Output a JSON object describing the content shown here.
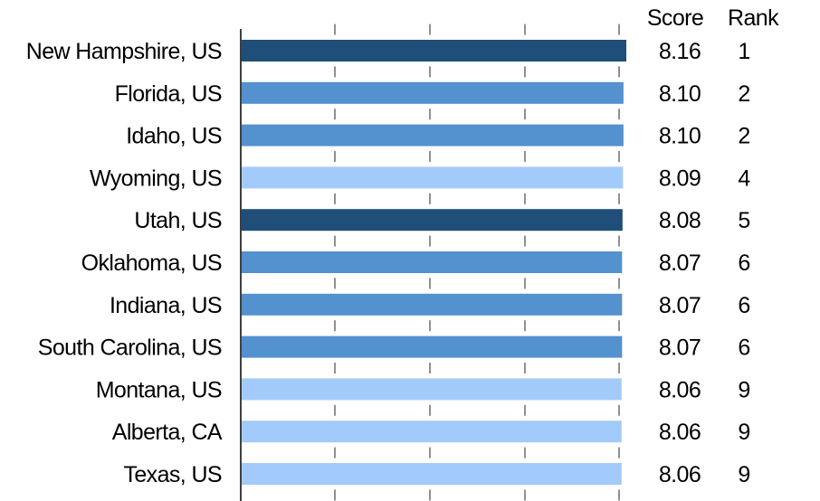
{
  "chart_data": {
    "type": "bar",
    "orientation": "horizontal",
    "grid": true,
    "columns": {
      "score_header": "Score",
      "rank_header": "Rank"
    },
    "categories": [
      "New Hampshire, US",
      "Florida, US",
      "Idaho, US",
      "Wyoming, US",
      "Utah, US",
      "Oklahoma, US",
      "Indiana, US",
      "South Carolina, US",
      "Montana, US",
      "Alberta, CA",
      "Texas, US"
    ],
    "values": [
      8.16,
      8.1,
      8.1,
      8.09,
      8.08,
      8.07,
      8.07,
      8.07,
      8.06,
      8.06,
      8.06
    ],
    "score_labels": [
      "8.16",
      "8.10",
      "8.10",
      "8.09",
      "8.08",
      "8.07",
      "8.07",
      "8.07",
      "8.06",
      "8.06",
      "8.06"
    ],
    "ranks": [
      "1",
      "2",
      "2",
      "4",
      "5",
      "6",
      "6",
      "6",
      "9",
      "9",
      "9"
    ],
    "bar_colors": [
      "#1f4e79",
      "#5491cf",
      "#5491cf",
      "#a2cbfb",
      "#1f4e79",
      "#5491cf",
      "#5491cf",
      "#5491cf",
      "#a2cbfb",
      "#a2cbfb",
      "#a2cbfb"
    ],
    "xlim": [
      0,
      8.2
    ]
  }
}
